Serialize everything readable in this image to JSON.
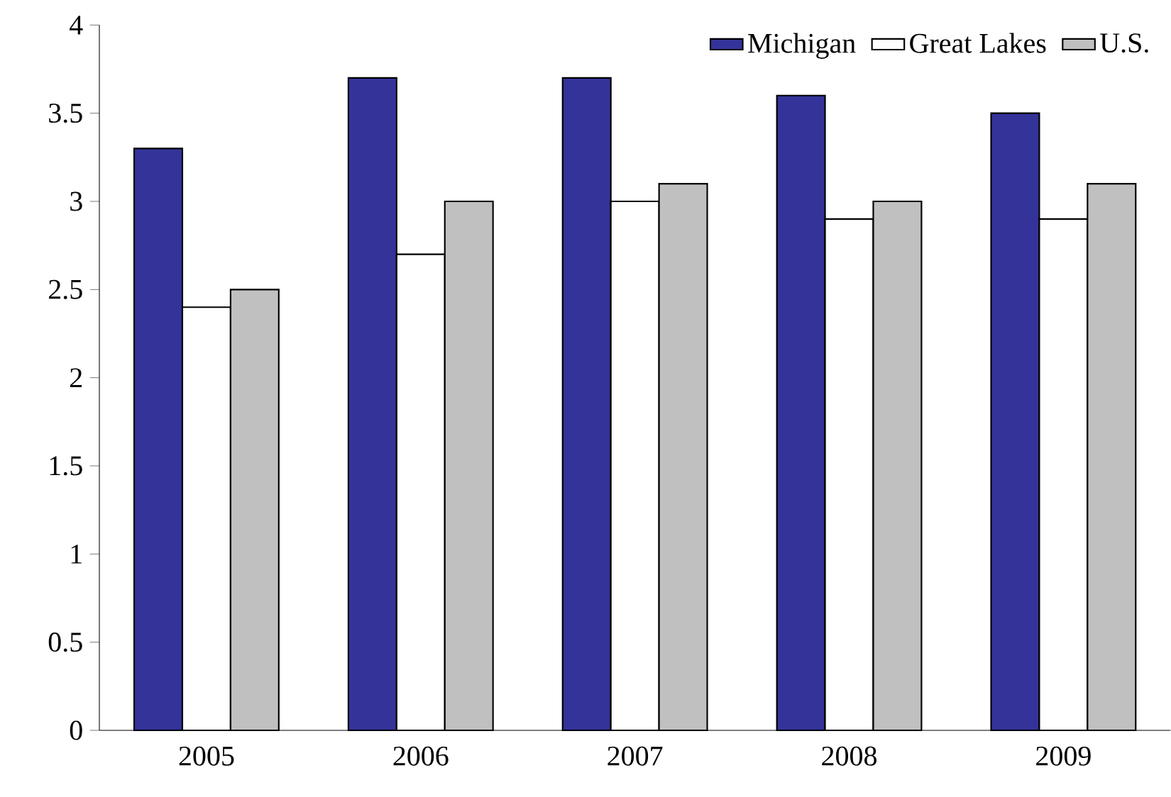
{
  "chart_data": {
    "type": "bar",
    "categories": [
      "2005",
      "2006",
      "2007",
      "2008",
      "2009"
    ],
    "series": [
      {
        "name": "Michigan",
        "color": "#333399",
        "values": [
          3.3,
          3.7,
          3.7,
          3.6,
          3.5
        ]
      },
      {
        "name": "Great Lakes",
        "color": "#ffffff",
        "values": [
          2.4,
          2.7,
          3.0,
          2.9,
          2.9
        ]
      },
      {
        "name": "U.S.",
        "color": "#c0c0c0",
        "values": [
          2.5,
          3.0,
          3.1,
          3.0,
          3.1
        ]
      }
    ],
    "ylim": [
      0,
      4
    ],
    "yticks": [
      0,
      0.5,
      1,
      1.5,
      2,
      2.5,
      3,
      3.5,
      4
    ],
    "grid": false,
    "legend": "top right"
  }
}
